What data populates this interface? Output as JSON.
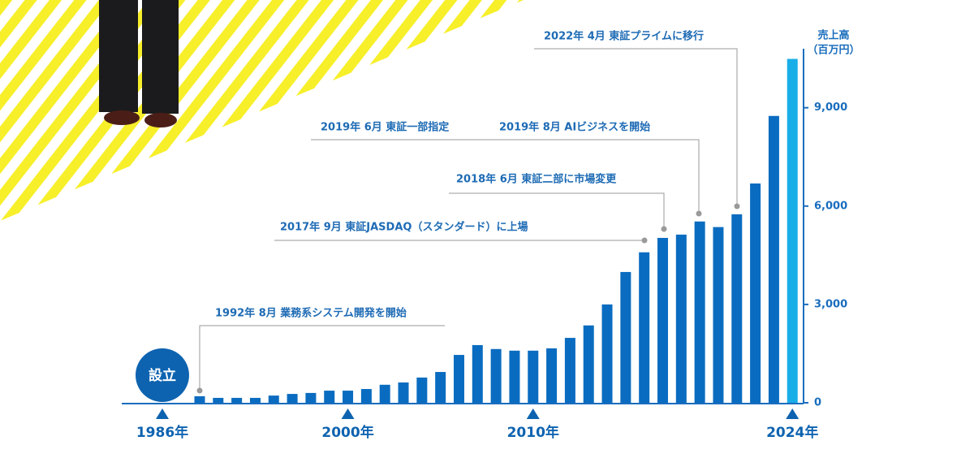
{
  "chart_data": {
    "type": "bar",
    "y_axis_title": [
      "売上高",
      "（百万円）"
    ],
    "categories": [
      null,
      null,
      null,
      null,
      null,
      null,
      null,
      null,
      "2000年",
      null,
      null,
      null,
      null,
      null,
      null,
      null,
      null,
      null,
      "2010年",
      null,
      null,
      null,
      null,
      null,
      null,
      null,
      null,
      null,
      null,
      null,
      null,
      null,
      "2024年"
    ],
    "values": [
      200,
      150,
      150,
      150,
      220,
      270,
      300,
      370,
      370,
      420,
      550,
      620,
      770,
      940,
      1460,
      1760,
      1640,
      1590,
      1590,
      1660,
      1980,
      2360,
      3000,
      3990,
      4590,
      5030,
      5130,
      5530,
      5360,
      5750,
      6690,
      8750,
      10490
    ],
    "bar_colors": [
      "#0a6cc0",
      "#0a6cc0",
      "#0a6cc0",
      "#0a6cc0",
      "#0a6cc0",
      "#0a6cc0",
      "#0a6cc0",
      "#0a6cc0",
      "#0a6cc0",
      "#0a6cc0",
      "#0a6cc0",
      "#0a6cc0",
      "#0a6cc0",
      "#0a6cc0",
      "#0a6cc0",
      "#0a6cc0",
      "#0a6cc0",
      "#0a6cc0",
      "#0a6cc0",
      "#0a6cc0",
      "#0a6cc0",
      "#0a6cc0",
      "#0a6cc0",
      "#0a6cc0",
      "#0a6cc0",
      "#0a6cc0",
      "#0a6cc0",
      "#0a6cc0",
      "#0a6cc0",
      "#0a6cc0",
      "#0a6cc0",
      "#0a6cc0",
      "#19aee8"
    ],
    "start_label": "1986年",
    "start_marker": "設立",
    "ylim": [
      0,
      10800
    ],
    "yticks": [
      0,
      {
        "value": 3000,
        "label": "3,000"
      },
      {
        "value": 6000,
        "label": "6,000"
      },
      {
        "value": 9000,
        "label": "9,000"
      }
    ],
    "annotations": [
      "1992年 8月  業務系システム開発を開始",
      "2017年 9月  東証JASDAQ（スタンダード）に上場",
      "2018年 6月  東証二部に市場変更",
      "2019年 6月  東証一部指定",
      "2019年 8月  AIビジネスを開始",
      "2022年 4月  東証プライムに移行"
    ]
  }
}
